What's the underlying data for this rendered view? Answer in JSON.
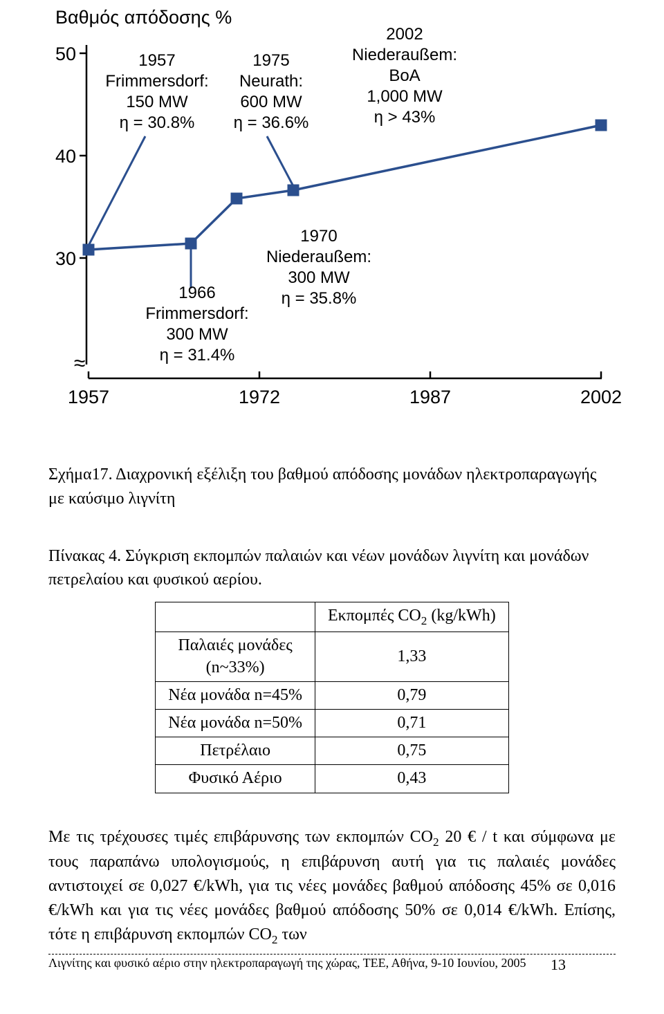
{
  "chart": {
    "title": "Βαθμός απόδοσης %",
    "type": "line-scatter",
    "accent_color": "#2b4f8e",
    "marker_fill": "#2b4f8e",
    "marker_size": 12,
    "line_width": 3,
    "background": "#ffffff",
    "y_ticks": [
      "50",
      "40",
      "30"
    ],
    "x_ticks": [
      "1957",
      "1972",
      "1987",
      "2002"
    ],
    "annotations": {
      "a1957": [
        "1957",
        "Frimmersdorf:",
        "150 MW",
        "ƞ = 30.8%"
      ],
      "a1975": [
        "1975",
        "Neurath:",
        "600 MW",
        "ƞ = 36.6%"
      ],
      "a2002": [
        "2002",
        "Niederaußem:",
        "BoA",
        "1,000 MW",
        "ƞ > 43%"
      ],
      "a1966": [
        "1966",
        "Frimmersdorf:",
        "300 MW",
        "ƞ = 31.4%"
      ],
      "a1970": [
        "",
        "1970",
        "Niederaußem:",
        "300 MW",
        "ƞ = 35.8%"
      ]
    }
  },
  "caption_chart": "Σχήμα17.  Διαχρονική  εξέλιξη  του  βαθμού  απόδοσης  μονάδων  ηλεκτροπαραγωγής  με καύσιμο λιγνίτη",
  "table": {
    "caption": "Πίνακας 4. Σύγκριση εκπομπών παλαιών και νέων μονάδων λιγνίτη και μονάδων πετρελαίου και φυσικού αερίου.",
    "header_col2_html": "Εκπομπές CO<sub>2</sub> (kg/kWh)",
    "rows": [
      {
        "c1_html": "Παλαιές μονάδες<br>(n~33%)",
        "c2": "1,33"
      },
      {
        "c1_html": "Νέα μονάδα n=45%",
        "c2": "0,79"
      },
      {
        "c1_html": "Νέα μονάδα n=50%",
        "c2": "0,71"
      },
      {
        "c1_html": "Πετρέλαιο",
        "c2": "0,75"
      },
      {
        "c1_html": "Φυσικό Αέριο",
        "c2": "0,43"
      }
    ]
  },
  "body_paragraph_html": "Με τις τρέχουσες τιμές επιβάρυνσης των εκπομπών CO<sub>2</sub> 20 € / t και σύμφωνα με τους παραπάνω υπολογισμούς, η επιβάρυνση αυτή  για τις παλαιές μονάδες αντιστοιχεί σε 0,027 €/kWh, για τις νέες μονάδες βαθμού απόδοσης 45% σε 0,016 €/kWh και για τις νέες μονάδες βαθμού απόδοσης 50% σε 0,014 €/kWh. Επίσης, τότε η επιβάρυνση εκπομπών CO<sub>2</sub> των",
  "footer_text": "Λιγνίτης και φυσικό αέριο στην ηλεκτροπαραγωγή της χώρας, ΤΕΕ, Αθήνα, 9-10 Ιουνίου, 2005",
  "page_number": "13"
}
